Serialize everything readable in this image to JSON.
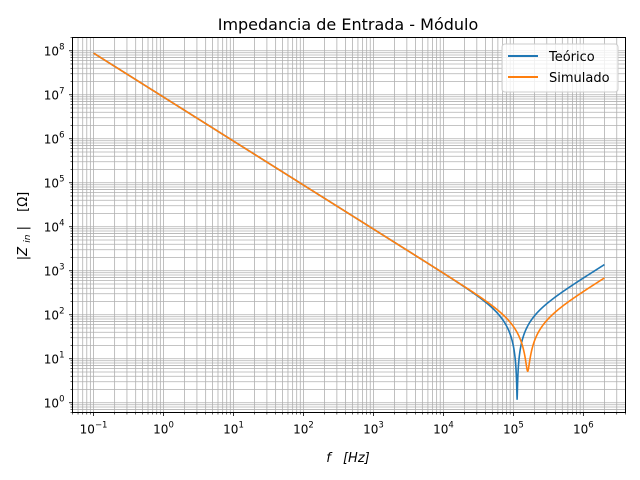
{
  "chart_data": {
    "type": "line",
    "title": "Impedancia de Entrada - Módulo",
    "xlabel_main": "f",
    "xlabel_unit": "[Hz]",
    "ylabel_main": "|Z",
    "ylabel_sub": "in",
    "ylabel_end": "|",
    "ylabel_unit": "[Ω]",
    "xscale": "log",
    "yscale": "log",
    "xlim": [
      0.05,
      4000000
    ],
    "ylim": [
      0.6,
      200000000
    ],
    "x_ticks": [
      {
        "base": "10",
        "exp": "−1",
        "value": 0.1
      },
      {
        "base": "10",
        "exp": "0",
        "value": 1
      },
      {
        "base": "10",
        "exp": "1",
        "value": 10
      },
      {
        "base": "10",
        "exp": "2",
        "value": 100
      },
      {
        "base": "10",
        "exp": "3",
        "value": 1000
      },
      {
        "base": "10",
        "exp": "4",
        "value": 10000
      },
      {
        "base": "10",
        "exp": "5",
        "value": 100000
      },
      {
        "base": "10",
        "exp": "6",
        "value": 1000000
      }
    ],
    "y_ticks": [
      {
        "base": "10",
        "exp": "0",
        "value": 1
      },
      {
        "base": "10",
        "exp": "1",
        "value": 10
      },
      {
        "base": "10",
        "exp": "2",
        "value": 100
      },
      {
        "base": "10",
        "exp": "3",
        "value": 1000
      },
      {
        "base": "10",
        "exp": "4",
        "value": 10000
      },
      {
        "base": "10",
        "exp": "5",
        "value": 100000
      },
      {
        "base": "10",
        "exp": "6",
        "value": 1000000
      },
      {
        "base": "10",
        "exp": "7",
        "value": 10000000
      },
      {
        "base": "10",
        "exp": "8",
        "value": 100000000
      }
    ],
    "grid": true,
    "grid_minor": true,
    "legend_position": "top-right",
    "series": [
      {
        "name": "Teórico",
        "color": "#1f77b4",
        "model": "series-LC",
        "params": {
          "C_farads": 1.8e-08,
          "f_resonance_hz": 113000,
          "R_ohms": 1.2
        },
        "x_range": [
          0.1,
          2000000
        ]
      },
      {
        "name": "Simulado",
        "color": "#ff7f0e",
        "model": "series-LC",
        "params": {
          "C_farads": 1.8e-08,
          "f_resonance_hz": 160000,
          "R_ohms": 5.2
        },
        "x_range": [
          0.1,
          2000000
        ]
      }
    ]
  }
}
